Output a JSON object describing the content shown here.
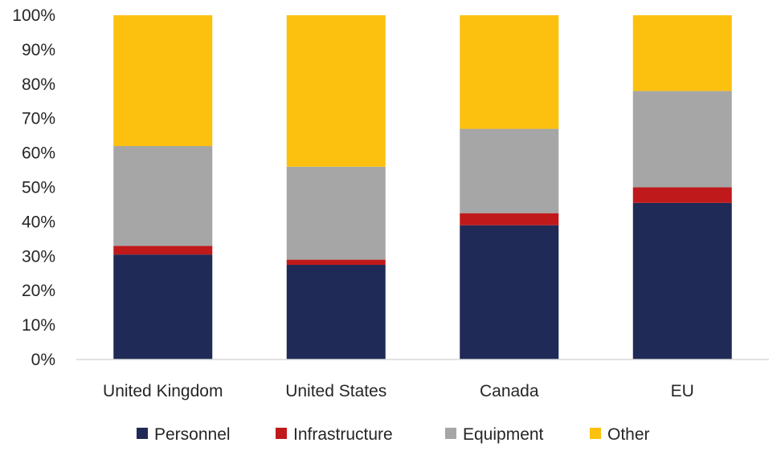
{
  "chart_data": {
    "type": "bar",
    "stacked": true,
    "normalized": true,
    "categories": [
      "United Kingdom",
      "United States",
      "Canada",
      "EU"
    ],
    "series": [
      {
        "name": "Personnel",
        "color": "#1f2a56",
        "values": [
          30.5,
          27.5,
          39.0,
          45.5
        ]
      },
      {
        "name": "Infrastructure",
        "color": "#c0191b",
        "values": [
          2.5,
          1.5,
          3.5,
          4.5
        ]
      },
      {
        "name": "Equipment",
        "color": "#a6a6a6",
        "values": [
          29.0,
          27.0,
          24.5,
          28.0
        ]
      },
      {
        "name": "Other",
        "color": "#fcc10f",
        "values": [
          38.0,
          44.0,
          33.0,
          22.0
        ]
      }
    ],
    "yticks": [
      "0%",
      "10%",
      "20%",
      "30%",
      "40%",
      "50%",
      "60%",
      "70%",
      "80%",
      "90%",
      "100%"
    ],
    "ylim": [
      0,
      100
    ],
    "grid": false,
    "legend_position": "bottom"
  }
}
